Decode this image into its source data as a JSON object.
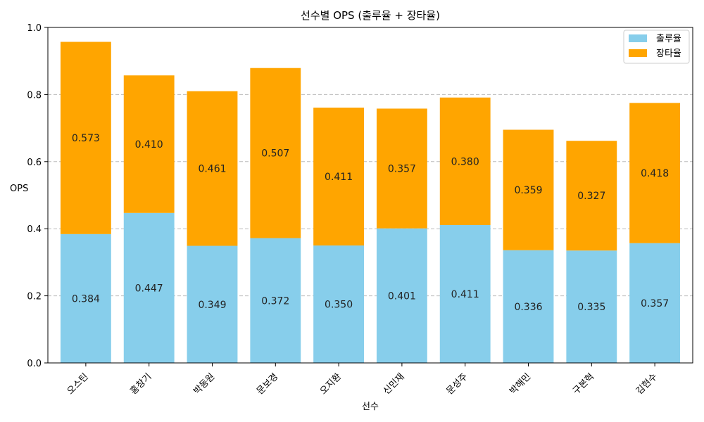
{
  "chart_data": {
    "type": "bar",
    "stacked": true,
    "title": "선수별 OPS (출루율 + 장타율)",
    "xlabel": "선수",
    "ylabel": "OPS",
    "ylim": [
      0,
      1.0
    ],
    "yticks": [
      "0.0",
      "0.2",
      "0.4",
      "0.6",
      "0.8",
      "1.0"
    ],
    "grid": "y-dashed",
    "legend_position": "top-right",
    "categories": [
      "오스틴",
      "홍창기",
      "박동원",
      "문보경",
      "오지환",
      "신민재",
      "문성주",
      "박해민",
      "구본혁",
      "김현수"
    ],
    "series": [
      {
        "name": "출루율",
        "color": "#87ceeb",
        "values": [
          0.384,
          0.447,
          0.349,
          0.372,
          0.35,
          0.401,
          0.411,
          0.336,
          0.335,
          0.357
        ],
        "labels": [
          "0.384",
          "0.447",
          "0.349",
          "0.372",
          "0.350",
          "0.401",
          "0.411",
          "0.336",
          "0.335",
          "0.357"
        ]
      },
      {
        "name": "장타율",
        "color": "#ffa500",
        "values": [
          0.573,
          0.41,
          0.461,
          0.507,
          0.411,
          0.357,
          0.38,
          0.359,
          0.327,
          0.418
        ],
        "labels": [
          "0.573",
          "0.410",
          "0.461",
          "0.507",
          "0.411",
          "0.357",
          "0.380",
          "0.359",
          "0.327",
          "0.418"
        ]
      }
    ]
  }
}
